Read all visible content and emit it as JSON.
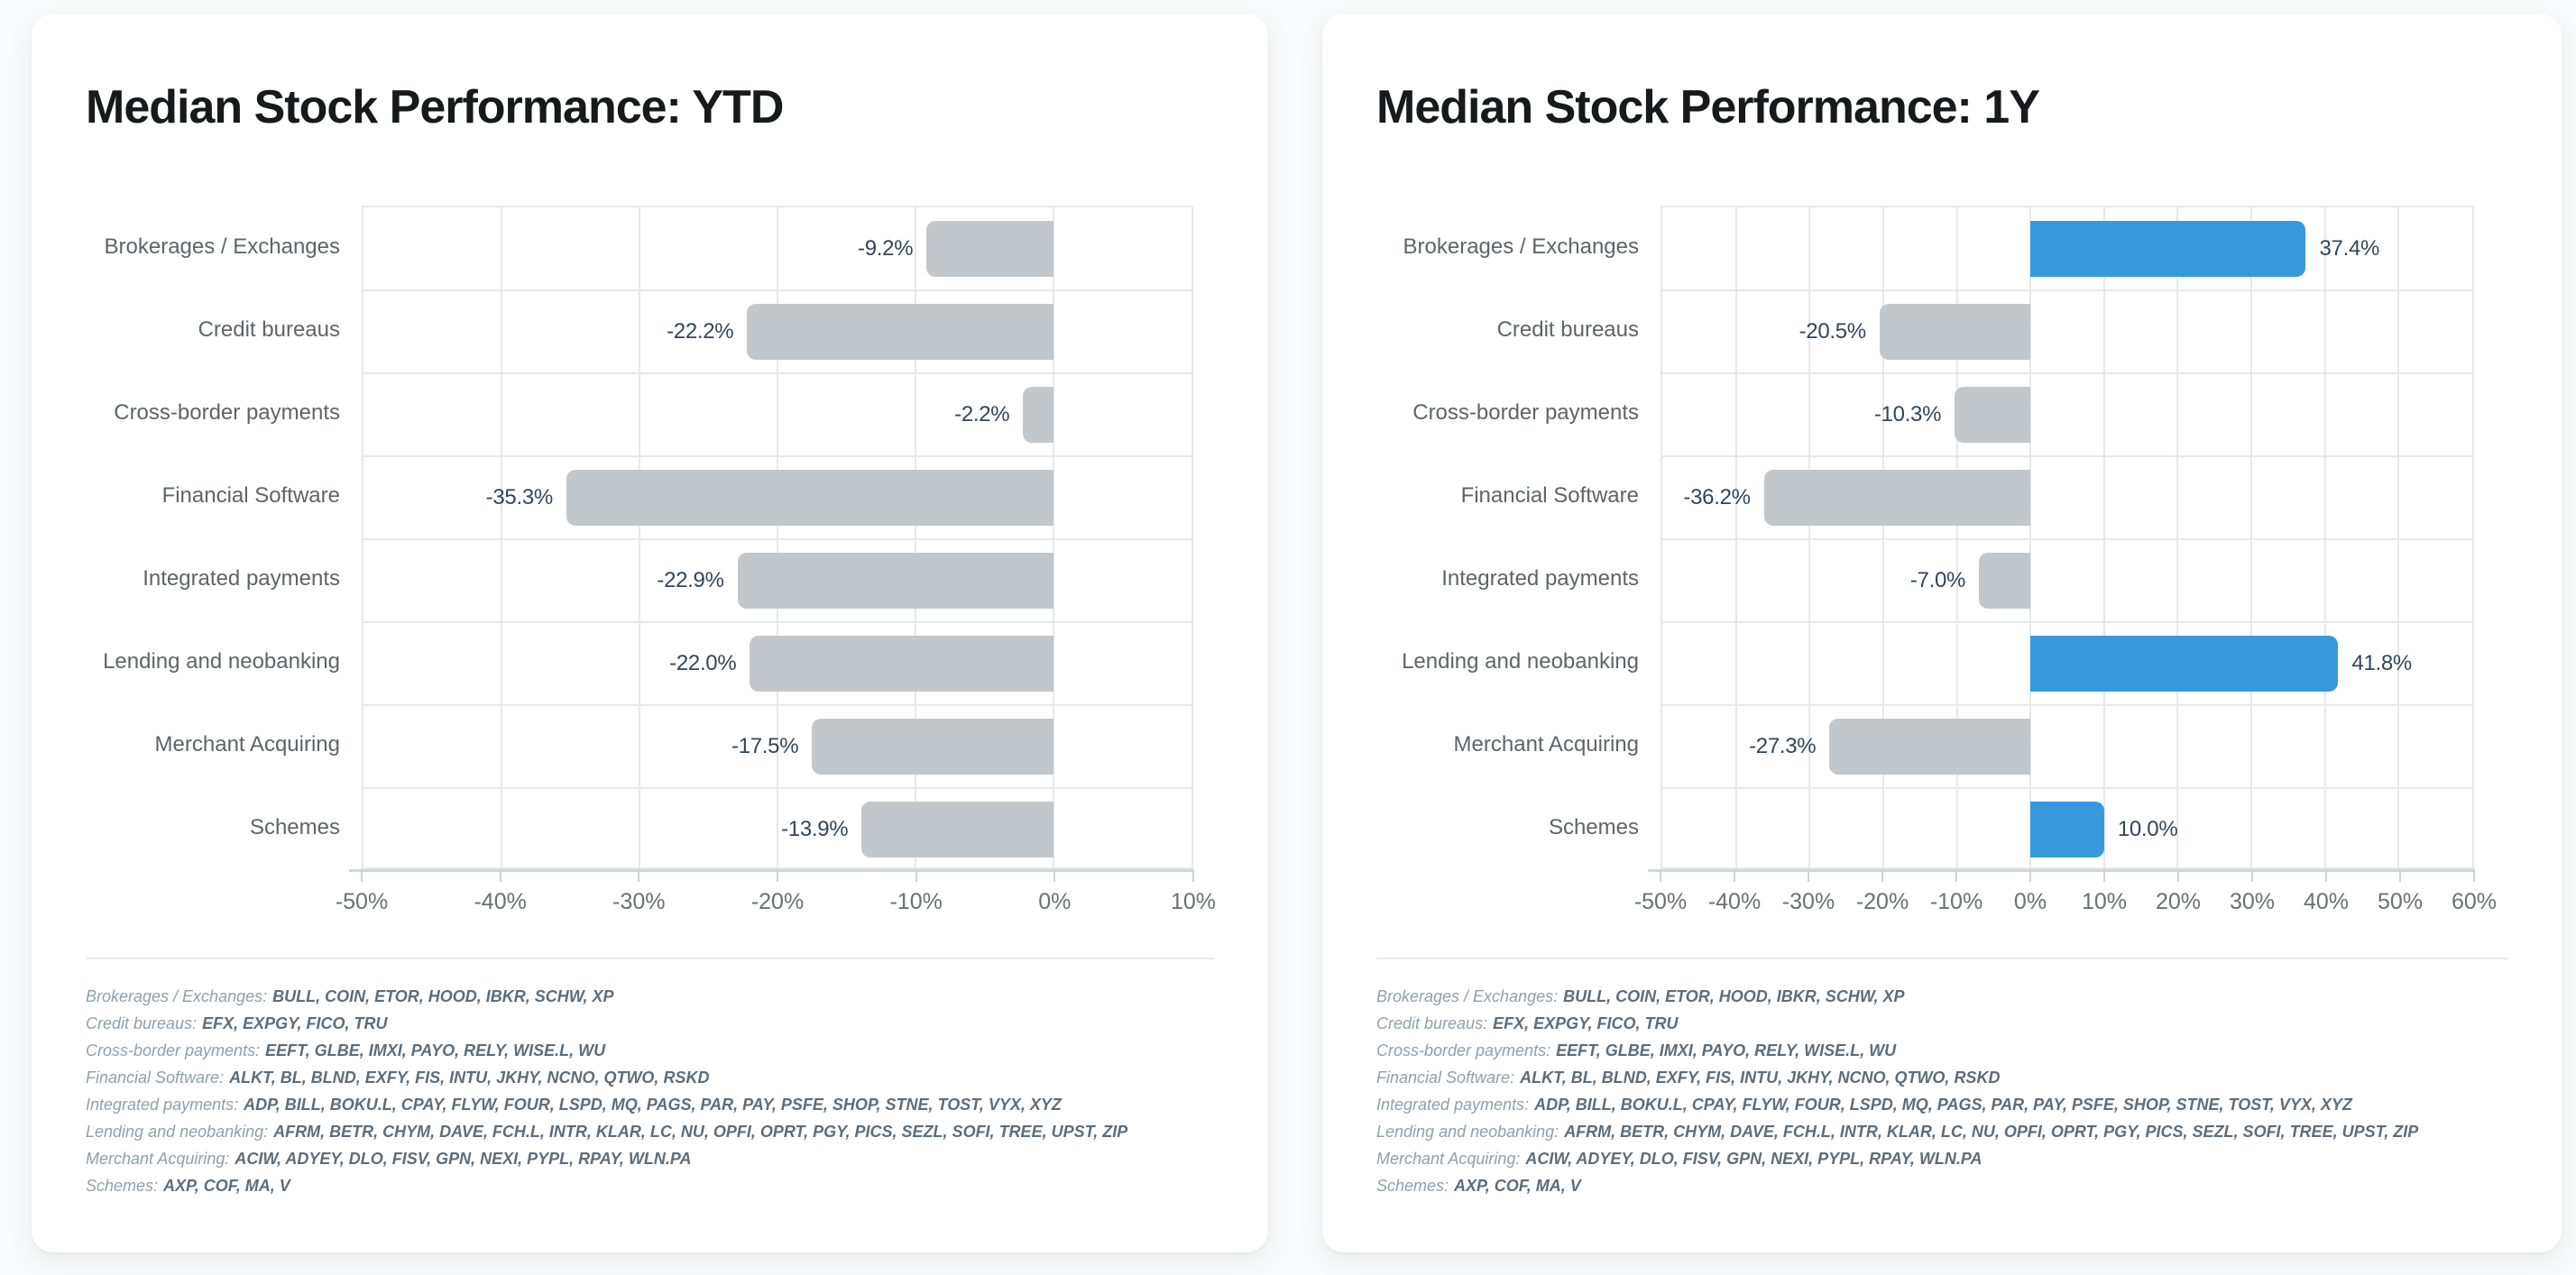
{
  "cards": [
    {
      "name": "ytd-performance-card"
    },
    {
      "name": "one-year-performance-card"
    }
  ],
  "chart_data": [
    {
      "type": "bar",
      "orientation": "horizontal",
      "title": "Median Stock Performance: YTD",
      "categories": [
        "Brokerages / Exchanges",
        "Credit bureaus",
        "Cross-border payments",
        "Financial Software",
        "Integrated payments",
        "Lending and neobanking",
        "Merchant Acquiring",
        "Schemes"
      ],
      "values": [
        -9.2,
        -22.2,
        -2.2,
        -35.3,
        -22.9,
        -22.0,
        -17.5,
        -13.9
      ],
      "labels": [
        "-9.2%",
        "-22.2%",
        "-2.2%",
        "-35.3%",
        "-22.9%",
        "-22.0%",
        "-17.5%",
        "-13.9%"
      ],
      "xlim": [
        -50,
        10
      ],
      "xticks": [
        {
          "value": -50,
          "label": "-50%"
        },
        {
          "value": -40,
          "label": "-40%"
        },
        {
          "value": -30,
          "label": "-30%"
        },
        {
          "value": -20,
          "label": "-20%"
        },
        {
          "value": -10,
          "label": "-10%"
        },
        {
          "value": 0,
          "label": "0%"
        },
        {
          "value": 10,
          "label": "10%"
        }
      ],
      "grid": true,
      "legend": "none",
      "colors": {
        "positive_bar": "#3799dc",
        "negative_bar": "#c2c7cb",
        "value_label": "#32455a"
      }
    },
    {
      "type": "bar",
      "orientation": "horizontal",
      "title": "Median Stock Performance: 1Y",
      "categories": [
        "Brokerages / Exchanges",
        "Credit bureaus",
        "Cross-border payments",
        "Financial Software",
        "Integrated payments",
        "Lending and neobanking",
        "Merchant Acquiring",
        "Schemes"
      ],
      "values": [
        37.4,
        -20.5,
        -10.3,
        -36.2,
        -7.0,
        41.8,
        -27.3,
        10.0
      ],
      "labels": [
        "37.4%",
        "-20.5%",
        "-10.3%",
        "-36.2%",
        "-7.0%",
        "41.8%",
        "-27.3%",
        "10.0%"
      ],
      "xlim": [
        -50,
        60
      ],
      "xticks": [
        {
          "value": -50,
          "label": "-50%"
        },
        {
          "value": -40,
          "label": "-40%"
        },
        {
          "value": -30,
          "label": "-30%"
        },
        {
          "value": -20,
          "label": "-20%"
        },
        {
          "value": -10,
          "label": "-10%"
        },
        {
          "value": 0,
          "label": "0%"
        },
        {
          "value": 10,
          "label": "10%"
        },
        {
          "value": 20,
          "label": "20%"
        },
        {
          "value": 30,
          "label": "30%"
        },
        {
          "value": 40,
          "label": "40%"
        },
        {
          "value": 50,
          "label": "50%"
        },
        {
          "value": 60,
          "label": "60%"
        }
      ],
      "grid": true,
      "legend": "none",
      "colors": {
        "positive_bar": "#3799dc",
        "negative_bar": "#c2c7cb",
        "value_label": "#32455a"
      }
    }
  ],
  "footnotes": [
    {
      "sector": "Brokerages / Exchanges",
      "tickers": "BULL, COIN, ETOR, HOOD, IBKR, SCHW, XP"
    },
    {
      "sector": "Credit bureaus",
      "tickers": "EFX, EXPGY, FICO, TRU"
    },
    {
      "sector": "Cross-border payments",
      "tickers": "EEFT, GLBE, IMXI, PAYO, RELY, WISE.L, WU"
    },
    {
      "sector": "Financial Software",
      "tickers": "ALKT, BL, BLND, EXFY, FIS, INTU, JKHY, NCNO, QTWO, RSKD"
    },
    {
      "sector": "Integrated payments",
      "tickers": "ADP, BILL, BOKU.L, CPAY, FLYW, FOUR, LSPD, MQ, PAGS, PAR, PAY, PSFE, SHOP, STNE, TOST, VYX, XYZ"
    },
    {
      "sector": "Lending and neobanking",
      "tickers": "AFRM, BETR, CHYM, DAVE, FCH.L, INTR, KLAR, LC, NU, OPFI, OPRT, PGY, PICS, SEZL, SOFI, TREE, UPST, ZIP"
    },
    {
      "sector": "Merchant Acquiring",
      "tickers": "ACIW, ADYEY, DLO, FISV, GPN, NEXI, PYPL, RPAY, WLN.PA"
    },
    {
      "sector": "Schemes",
      "tickers": "AXP, COF, MA, V"
    }
  ]
}
